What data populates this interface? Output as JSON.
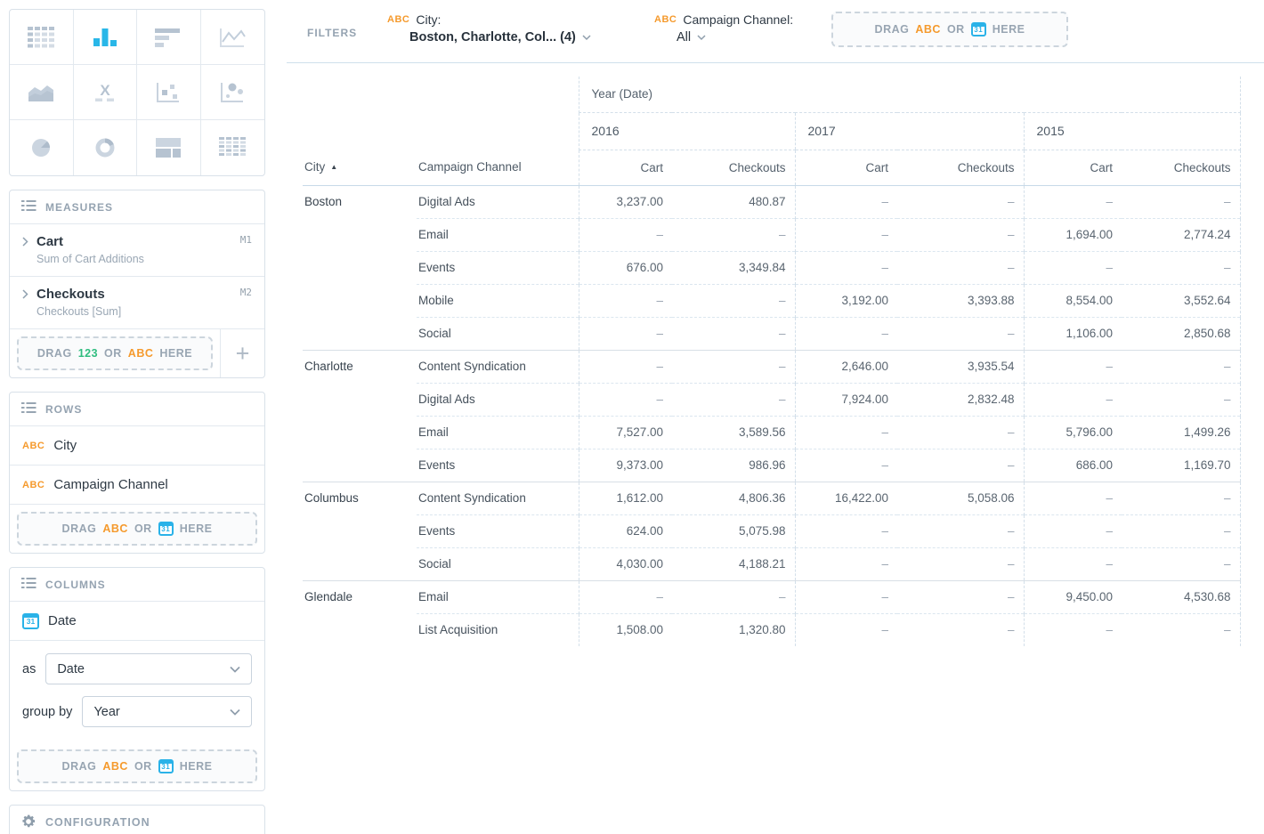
{
  "colors": {
    "accent_cyan": "#29b7e8",
    "accent_orange": "#f59a2d",
    "accent_green": "#2fbd7f"
  },
  "chart_picker": {
    "selected": "bar-chart",
    "types": [
      "table",
      "bar-chart",
      "horizontal-bar-chart",
      "line-chart",
      "area-chart",
      "x-axis",
      "scatter-plot",
      "bubble-chart",
      "pie-chart",
      "donut-chart",
      "treemap",
      "pivot-table"
    ]
  },
  "sidebar": {
    "measures": {
      "title": "MEASURES",
      "items": [
        {
          "name": "Cart",
          "subtitle": "Sum of Cart Additions",
          "badge": "M1"
        },
        {
          "name": "Checkouts",
          "subtitle": "Checkouts [Sum]",
          "badge": "M2"
        }
      ],
      "add_label": "+"
    },
    "rows": {
      "title": "ROWS",
      "items": [
        {
          "type": "ABC",
          "label": "City"
        },
        {
          "type": "ABC",
          "label": "Campaign Channel"
        }
      ]
    },
    "columns": {
      "title": "COLUMNS",
      "field": {
        "label": "Date"
      },
      "as_label": "as",
      "as_value": "Date",
      "group_by_label": "group by",
      "group_by_value": "Year"
    },
    "configuration": {
      "title": "CONFIGURATION"
    }
  },
  "dropzones": {
    "measures": [
      {
        "text": "DRAG",
        "color": "gray"
      },
      {
        "text": "123",
        "color": "green"
      },
      {
        "text": "OR",
        "color": "gray"
      },
      {
        "text": "ABC",
        "color": "orange"
      },
      {
        "text": "HERE",
        "color": "gray"
      }
    ],
    "rows": [
      {
        "text": "DRAG",
        "color": "gray"
      },
      {
        "text": "ABC",
        "color": "orange"
      },
      {
        "text": "OR",
        "color": "gray"
      },
      {
        "icon": "calendar"
      },
      {
        "text": "HERE",
        "color": "gray"
      }
    ],
    "columns": [
      {
        "text": "DRAG",
        "color": "gray"
      },
      {
        "text": "ABC",
        "color": "orange"
      },
      {
        "text": "OR",
        "color": "gray"
      },
      {
        "icon": "calendar"
      },
      {
        "text": "HERE",
        "color": "gray"
      }
    ],
    "filters": [
      {
        "text": "DRAG",
        "color": "gray"
      },
      {
        "text": "ABC",
        "color": "orange"
      },
      {
        "text": "OR",
        "color": "gray"
      },
      {
        "icon": "calendar"
      },
      {
        "text": "HERE",
        "color": "gray"
      }
    ]
  },
  "filters": {
    "label": "FILTERS",
    "items": [
      {
        "type": "ABC",
        "name": "City:",
        "value": "Boston, Charlotte, Col... (4)"
      },
      {
        "type": "ABC",
        "name": "Campaign Channel:",
        "value": "All"
      }
    ]
  },
  "pivot": {
    "col_dimension_label": "Year (Date)",
    "years": [
      "2016",
      "2017",
      "2015"
    ],
    "measure_headers": [
      "Cart",
      "Checkouts"
    ],
    "row_headers": {
      "city": "City",
      "channel": "Campaign Channel"
    },
    "sort": {
      "column": "City",
      "direction": "asc"
    },
    "empty": "–",
    "groups": [
      {
        "city": "Boston",
        "rows": [
          {
            "channel": "Digital Ads",
            "values": [
              "3,237.00",
              "480.87",
              "–",
              "–",
              "–",
              "–"
            ]
          },
          {
            "channel": "Email",
            "values": [
              "–",
              "–",
              "–",
              "–",
              "1,694.00",
              "2,774.24"
            ]
          },
          {
            "channel": "Events",
            "values": [
              "676.00",
              "3,349.84",
              "–",
              "–",
              "–",
              "–"
            ]
          },
          {
            "channel": "Mobile",
            "values": [
              "–",
              "–",
              "3,192.00",
              "3,393.88",
              "8,554.00",
              "3,552.64"
            ]
          },
          {
            "channel": "Social",
            "values": [
              "–",
              "–",
              "–",
              "–",
              "1,106.00",
              "2,850.68"
            ]
          }
        ]
      },
      {
        "city": "Charlotte",
        "rows": [
          {
            "channel": "Content Syndication",
            "values": [
              "–",
              "–",
              "2,646.00",
              "3,935.54",
              "–",
              "–"
            ]
          },
          {
            "channel": "Digital Ads",
            "values": [
              "–",
              "–",
              "7,924.00",
              "2,832.48",
              "–",
              "–"
            ]
          },
          {
            "channel": "Email",
            "values": [
              "7,527.00",
              "3,589.56",
              "–",
              "–",
              "5,796.00",
              "1,499.26"
            ]
          },
          {
            "channel": "Events",
            "values": [
              "9,373.00",
              "986.96",
              "–",
              "–",
              "686.00",
              "1,169.70"
            ]
          }
        ]
      },
      {
        "city": "Columbus",
        "rows": [
          {
            "channel": "Content Syndication",
            "values": [
              "1,612.00",
              "4,806.36",
              "16,422.00",
              "5,058.06",
              "–",
              "–"
            ]
          },
          {
            "channel": "Events",
            "values": [
              "624.00",
              "5,075.98",
              "–",
              "–",
              "–",
              "–"
            ]
          },
          {
            "channel": "Social",
            "values": [
              "4,030.00",
              "4,188.21",
              "–",
              "–",
              "–",
              "–"
            ]
          }
        ]
      },
      {
        "city": "Glendale",
        "rows": [
          {
            "channel": "Email",
            "values": [
              "–",
              "–",
              "–",
              "–",
              "9,450.00",
              "4,530.68"
            ]
          },
          {
            "channel": "List Acquisition",
            "values": [
              "1,508.00",
              "1,320.80",
              "–",
              "–",
              "–",
              "–"
            ]
          }
        ]
      }
    ]
  }
}
